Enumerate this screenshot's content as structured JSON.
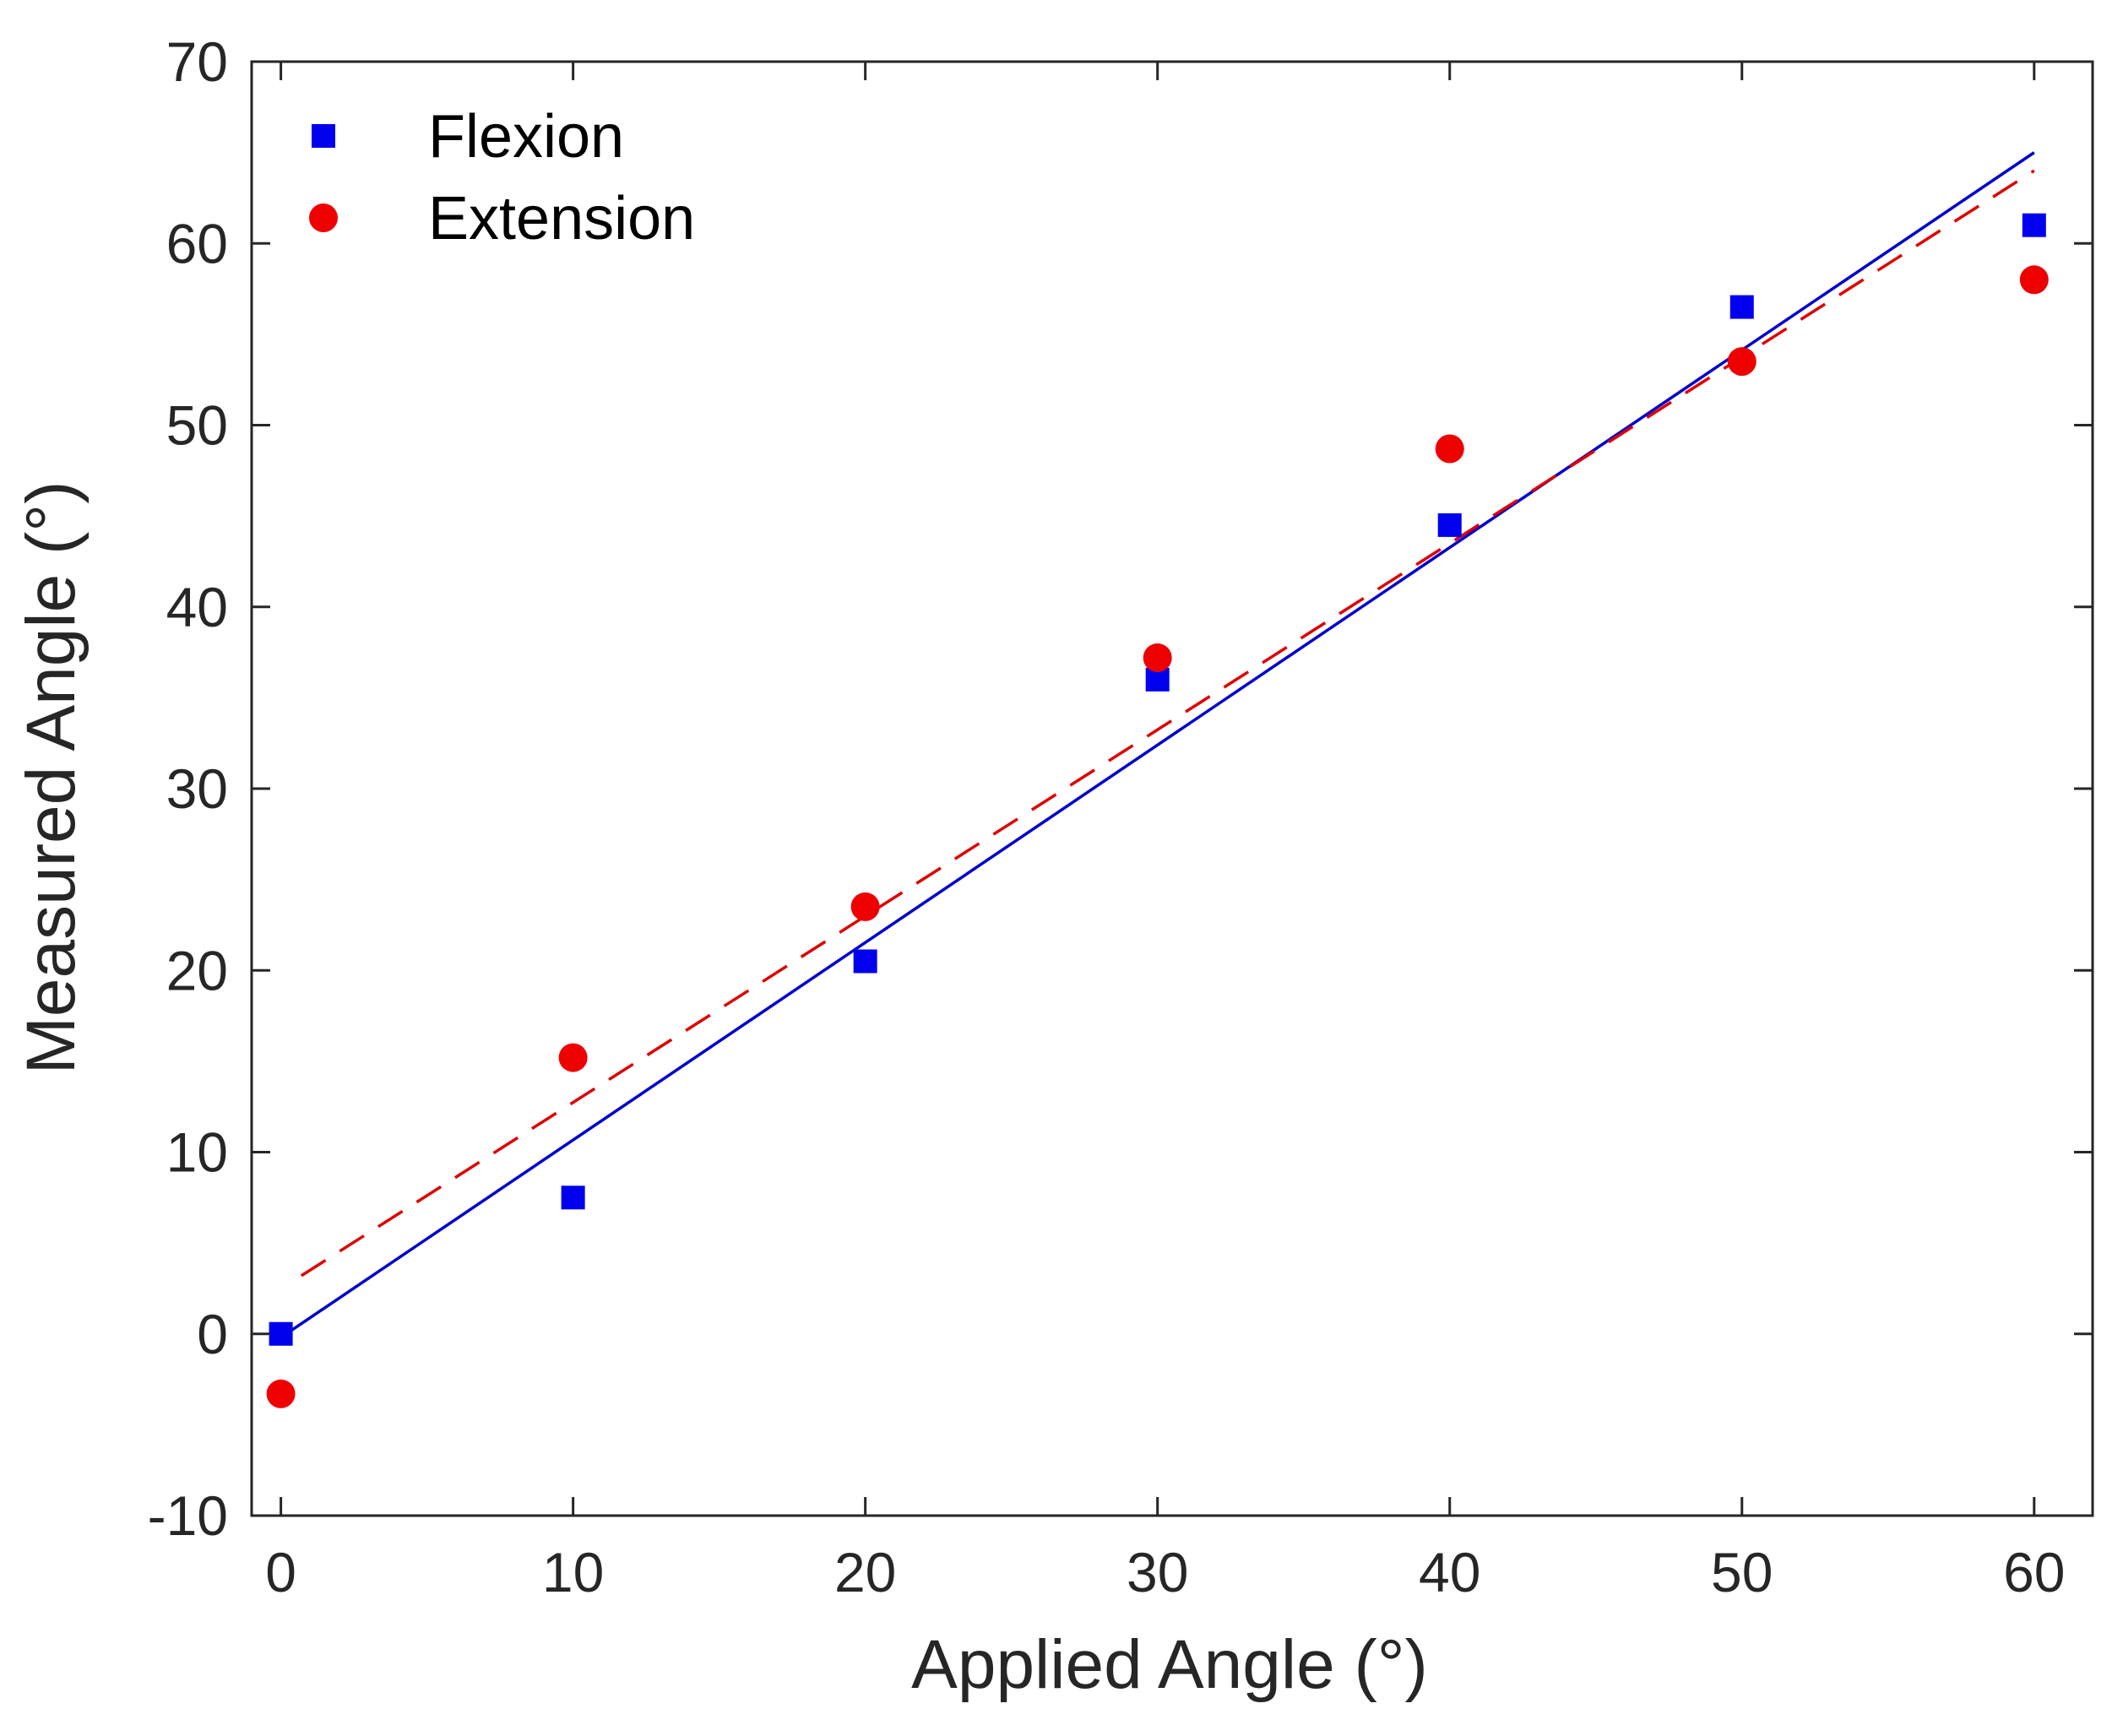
{
  "chart_data": {
    "type": "scatter",
    "title": "",
    "xlabel": "Applied Angle (°)",
    "ylabel": "Measured Angle (°)",
    "xlim": [
      -1,
      62
    ],
    "ylim": [
      -10,
      70
    ],
    "xticks": [
      0,
      10,
      20,
      30,
      40,
      50,
      60
    ],
    "yticks": [
      -10,
      0,
      10,
      20,
      30,
      40,
      50,
      60,
      70
    ],
    "x_tick_labels": [
      "0",
      "10",
      "20",
      "30",
      "40",
      "50",
      "60"
    ],
    "y_tick_labels": [
      "-10",
      "0",
      "10",
      "20",
      "30",
      "40",
      "50",
      "60",
      "70"
    ],
    "grid": false,
    "legend_position": "top-left",
    "series": [
      {
        "name": "Flexion",
        "marker": "square",
        "color": "#0000ee",
        "x": [
          0,
          10,
          20,
          30,
          40,
          50,
          60
        ],
        "y": [
          0,
          7.5,
          20.5,
          36,
          44.5,
          56.5,
          61
        ]
      },
      {
        "name": "Extension",
        "marker": "circle",
        "color": "#ee0000",
        "x": [
          0,
          10,
          20,
          30,
          40,
          50,
          60
        ],
        "y": [
          -3.3,
          15.2,
          23.5,
          37.2,
          48.7,
          53.5,
          58
        ]
      }
    ],
    "fit_lines": [
      {
        "series": "Flexion",
        "style": "solid",
        "color": "#0000cc",
        "x": [
          0,
          60
        ],
        "y": [
          -0.2,
          65
        ]
      },
      {
        "series": "Extension",
        "style": "dashed",
        "color": "#dd0000",
        "x": [
          0.7,
          60
        ],
        "y": [
          3.2,
          64
        ]
      }
    ]
  }
}
